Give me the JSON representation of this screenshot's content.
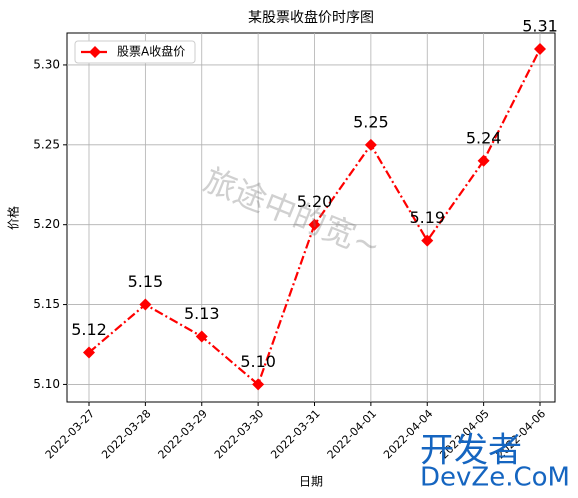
{
  "chart_data": {
    "type": "line",
    "title": "某股票收盘价时序图",
    "xlabel": "日期",
    "ylabel": "价格",
    "categories": [
      "2022-03-27",
      "2022-03-28",
      "2022-03-29",
      "2022-03-30",
      "2022-03-31",
      "2022-04-01",
      "2022-04-04",
      "2022-04-05",
      "2022-04-06"
    ],
    "series": [
      {
        "name": "股票A收盘价",
        "color": "#ff0000",
        "values": [
          5.12,
          5.15,
          5.13,
          5.1,
          5.2,
          5.25,
          5.19,
          5.24,
          5.31
        ],
        "value_labels": [
          "5.12",
          "5.15",
          "5.13",
          "5.10",
          "5.20",
          "5.25",
          "5.19",
          "5.24",
          "5.31"
        ]
      }
    ],
    "ylim": [
      5.089,
      5.32
    ],
    "yticks": [
      {
        "value": 5.1,
        "label": "5.10"
      },
      {
        "value": 5.15,
        "label": "5.15"
      },
      {
        "value": 5.2,
        "label": "5.20"
      },
      {
        "value": 5.25,
        "label": "5.25"
      },
      {
        "value": 5.3,
        "label": "5.30"
      }
    ],
    "grid": true,
    "legend": "upper left",
    "watermarks": [
      "旅途中的宽~",
      "开发者",
      "DevZe.CoM"
    ]
  }
}
